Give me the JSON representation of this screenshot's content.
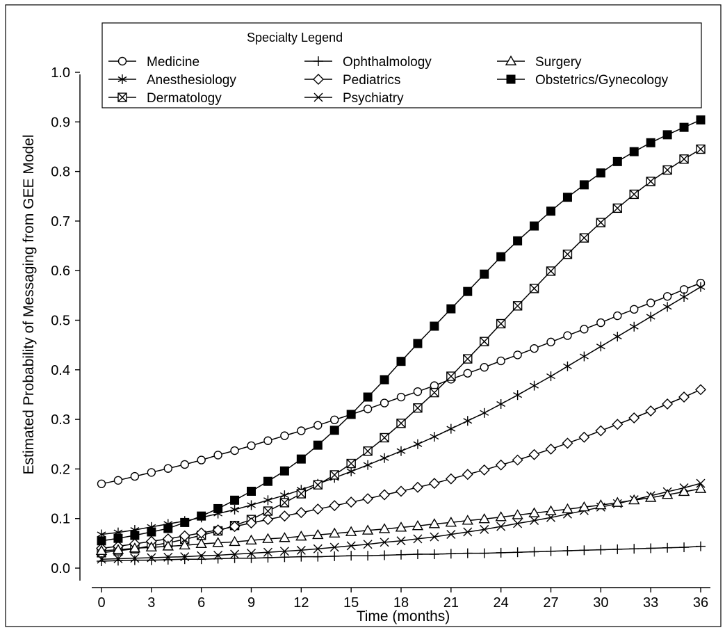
{
  "chart_data": {
    "type": "line",
    "title": "",
    "xlabel": "Time (months)",
    "ylabel": "Estimated Probability of Messaging from GEE Model",
    "xlim": [
      0,
      36
    ],
    "ylim": [
      0.0,
      1.0
    ],
    "x_ticks": [
      "0",
      "3",
      "6",
      "9",
      "12",
      "15",
      "18",
      "21",
      "24",
      "27",
      "30",
      "33",
      "36"
    ],
    "y_ticks": [
      "0.0",
      "0.1",
      "0.2",
      "0.3",
      "0.4",
      "0.5",
      "0.6",
      "0.7",
      "0.8",
      "0.9",
      "1.0"
    ],
    "grid": false,
    "legend_title": "Specialty Legend",
    "legend_position": "top",
    "line_color": "#000000",
    "x": [
      0,
      1,
      2,
      3,
      4,
      5,
      6,
      7,
      8,
      9,
      10,
      11,
      12,
      13,
      14,
      15,
      16,
      17,
      18,
      19,
      20,
      21,
      22,
      23,
      24,
      25,
      26,
      27,
      28,
      29,
      30,
      31,
      32,
      33,
      34,
      35,
      36
    ],
    "series": [
      {
        "name": "Medicine",
        "marker": "circle-open",
        "values": [
          0.17,
          0.177,
          0.185,
          0.193,
          0.201,
          0.209,
          0.218,
          0.228,
          0.237,
          0.247,
          0.257,
          0.267,
          0.277,
          0.288,
          0.299,
          0.31,
          0.321,
          0.333,
          0.345,
          0.356,
          0.368,
          0.381,
          0.393,
          0.405,
          0.418,
          0.43,
          0.443,
          0.456,
          0.469,
          0.482,
          0.495,
          0.509,
          0.522,
          0.535,
          0.548,
          0.562,
          0.575
        ]
      },
      {
        "name": "Anesthesiology",
        "marker": "asterisk",
        "values": [
          0.068,
          0.072,
          0.077,
          0.083,
          0.089,
          0.095,
          0.102,
          0.11,
          0.118,
          0.127,
          0.137,
          0.147,
          0.158,
          0.17,
          0.182,
          0.195,
          0.208,
          0.222,
          0.236,
          0.25,
          0.265,
          0.281,
          0.297,
          0.313,
          0.331,
          0.349,
          0.368,
          0.387,
          0.407,
          0.427,
          0.447,
          0.467,
          0.487,
          0.507,
          0.527,
          0.547,
          0.567
        ]
      },
      {
        "name": "Dermatology",
        "marker": "square-x",
        "values": [
          0.031,
          0.035,
          0.039,
          0.045,
          0.051,
          0.058,
          0.066,
          0.075,
          0.086,
          0.098,
          0.115,
          0.132,
          0.15,
          0.168,
          0.188,
          0.211,
          0.236,
          0.263,
          0.292,
          0.323,
          0.354,
          0.387,
          0.422,
          0.457,
          0.493,
          0.529,
          0.564,
          0.599,
          0.633,
          0.666,
          0.697,
          0.726,
          0.754,
          0.78,
          0.803,
          0.825,
          0.845
        ]
      },
      {
        "name": "Ophthalmology",
        "marker": "plus",
        "values": [
          0.014,
          0.015,
          0.016,
          0.016,
          0.017,
          0.018,
          0.018,
          0.019,
          0.02,
          0.02,
          0.021,
          0.022,
          0.023,
          0.023,
          0.024,
          0.025,
          0.025,
          0.026,
          0.027,
          0.028,
          0.028,
          0.029,
          0.03,
          0.03,
          0.031,
          0.032,
          0.033,
          0.034,
          0.035,
          0.036,
          0.037,
          0.038,
          0.039,
          0.04,
          0.041,
          0.042,
          0.044
        ]
      },
      {
        "name": "Pediatrics",
        "marker": "diamond-open",
        "values": [
          0.04,
          0.044,
          0.049,
          0.054,
          0.059,
          0.065,
          0.071,
          0.077,
          0.084,
          0.091,
          0.098,
          0.105,
          0.112,
          0.119,
          0.126,
          0.133,
          0.14,
          0.148,
          0.155,
          0.163,
          0.171,
          0.18,
          0.189,
          0.198,
          0.208,
          0.218,
          0.229,
          0.24,
          0.252,
          0.264,
          0.277,
          0.29,
          0.303,
          0.317,
          0.331,
          0.345,
          0.36
        ]
      },
      {
        "name": "Psychiatry",
        "marker": "x",
        "values": [
          0.018,
          0.019,
          0.02,
          0.021,
          0.022,
          0.023,
          0.025,
          0.026,
          0.028,
          0.03,
          0.032,
          0.034,
          0.036,
          0.039,
          0.042,
          0.045,
          0.048,
          0.052,
          0.055,
          0.059,
          0.063,
          0.068,
          0.073,
          0.078,
          0.084,
          0.09,
          0.096,
          0.102,
          0.109,
          0.116,
          0.123,
          0.13,
          0.138,
          0.146,
          0.154,
          0.162,
          0.171
        ]
      },
      {
        "name": "Surgery",
        "marker": "triangle-open",
        "values": [
          0.035,
          0.037,
          0.04,
          0.042,
          0.044,
          0.046,
          0.049,
          0.051,
          0.053,
          0.056,
          0.059,
          0.061,
          0.064,
          0.067,
          0.07,
          0.073,
          0.076,
          0.079,
          0.082,
          0.085,
          0.089,
          0.092,
          0.096,
          0.099,
          0.103,
          0.107,
          0.111,
          0.115,
          0.119,
          0.123,
          0.127,
          0.132,
          0.137,
          0.142,
          0.148,
          0.154,
          0.16
        ]
      },
      {
        "name": "Obstetrics/Gynecology",
        "marker": "square-filled",
        "values": [
          0.055,
          0.06,
          0.066,
          0.073,
          0.08,
          0.092,
          0.105,
          0.12,
          0.137,
          0.155,
          0.175,
          0.196,
          0.22,
          0.248,
          0.278,
          0.31,
          0.345,
          0.38,
          0.417,
          0.453,
          0.488,
          0.523,
          0.558,
          0.593,
          0.628,
          0.66,
          0.69,
          0.72,
          0.748,
          0.773,
          0.797,
          0.82,
          0.84,
          0.858,
          0.874,
          0.889,
          0.904
        ]
      }
    ]
  }
}
